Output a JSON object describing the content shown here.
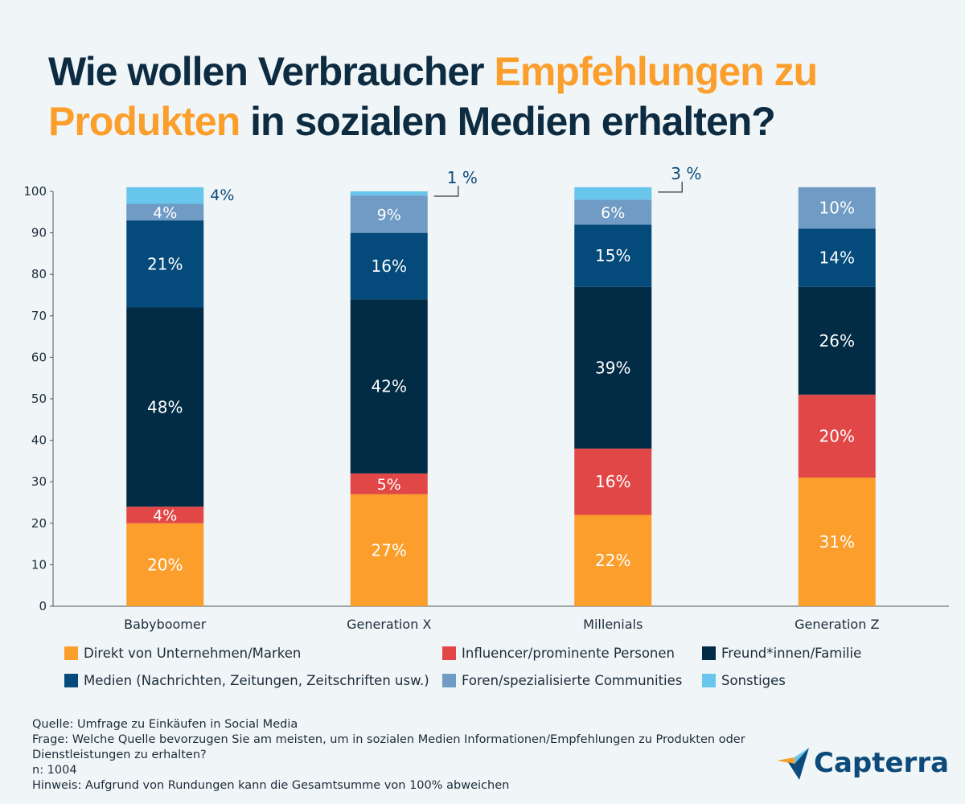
{
  "title": {
    "part1": "Wie wollen Verbraucher ",
    "highlight1": "Empfehlungen zu Produkten",
    "part2": " in sozialen Medien erhalten?"
  },
  "chart_data": {
    "type": "bar",
    "stacked": true,
    "categories": [
      "Babyboomer",
      "Generation X",
      "Millenials",
      "Generation Z"
    ],
    "ylim": [
      0,
      100
    ],
    "yticks": [
      0,
      10,
      20,
      30,
      40,
      50,
      60,
      70,
      80,
      90,
      100
    ],
    "series": [
      {
        "name": "Direkt von Unternehmen/Marken",
        "color": "#fb9e2c",
        "values": [
          20,
          27,
          22,
          31
        ]
      },
      {
        "name": "Influencer/prominente Personen",
        "color": "#e24747",
        "values": [
          4,
          5,
          16,
          20
        ]
      },
      {
        "name": "Freund*innen/Familie",
        "color": "#022b45",
        "values": [
          48,
          42,
          39,
          26
        ]
      },
      {
        "name": "Medien (Nachrichten, Zeitungen, Zeitschriften usw.)",
        "color": "#044a7b",
        "values": [
          21,
          16,
          15,
          14
        ]
      },
      {
        "name": "Foren/spezialisierte Communities",
        "color": "#6f9bc4",
        "values": [
          4,
          9,
          6,
          10
        ]
      },
      {
        "name": "Sonstiges",
        "color": "#68c5ec",
        "values": [
          4,
          1,
          3,
          0
        ]
      }
    ],
    "callouts": [
      "",
      "1 %",
      "3 %",
      ""
    ],
    "legend_position": "bottom",
    "grid": false
  },
  "footer": {
    "source": "Quelle: Umfrage zu Einkäufen in Social Media",
    "question": "Frage: Welche Quelle bevorzugen Sie am meisten, um in sozialen Medien Informationen/Empfehlungen zu Produkten oder Dienstleistungen zu erhalten?",
    "n": "n: 1004",
    "note": "Hinweis: Aufgrund von Rundungen kann die Gesamtsumme von 100% abweichen"
  },
  "logo": {
    "text": "Capterra"
  }
}
